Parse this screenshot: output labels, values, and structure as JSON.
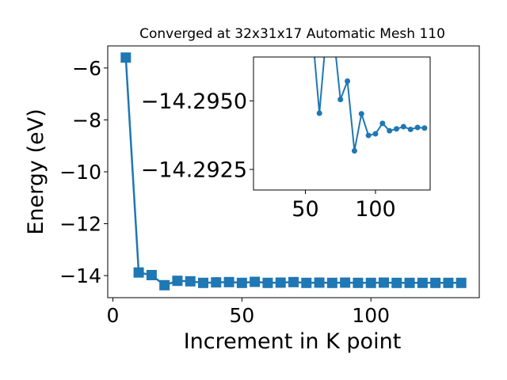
{
  "chart_data": [
    {
      "type": "line",
      "title": "Converged at 32x31x17 Automatic Mesh 110",
      "xlabel": "Increment in K point",
      "ylabel": "Energy (eV)",
      "xlim": [
        -2,
        142
      ],
      "ylim": [
        -14.85,
        -5.15
      ],
      "xticks": [
        0,
        50,
        100
      ],
      "yticks": [
        -14,
        -12,
        -10,
        -8,
        -6
      ],
      "grid": false,
      "color": "#1f77b4",
      "marker": "square",
      "series": [
        {
          "x": [
            5,
            10,
            15,
            20,
            25,
            30,
            35,
            40,
            45,
            50,
            55,
            60,
            65,
            70,
            75,
            80,
            85,
            90,
            95,
            100,
            105,
            110,
            115,
            120,
            125,
            130,
            135
          ],
          "y": [
            -5.6,
            -13.88,
            -13.98,
            -14.37,
            -14.2,
            -14.22,
            -14.28,
            -14.26,
            -14.25,
            -14.28,
            -14.24,
            -14.28,
            -14.27,
            -14.25,
            -14.28,
            -14.27,
            -14.28,
            -14.27,
            -14.28,
            -14.28,
            -14.27,
            -14.28,
            -14.28,
            -14.28,
            -14.28,
            -14.28,
            -14.28
          ]
        }
      ]
    },
    {
      "type": "line",
      "title": "",
      "xlim": [
        13,
        139
      ],
      "ylim": [
        -14.29175,
        -14.2966
      ],
      "xticks": [
        50,
        100
      ],
      "yticks": [
        -14.2925,
        -14.295
      ],
      "ytick_labels": [
        "−14.2925",
        "−14.2950"
      ],
      "grid": false,
      "color": "#1f77b4",
      "marker": "circle",
      "series": [
        {
          "x": [
            55,
            60,
            65,
            70,
            75,
            80,
            85,
            90,
            95,
            100,
            105,
            110,
            115,
            120,
            125,
            130,
            135
          ],
          "y": [
            -14.2975,
            -14.29455,
            -14.2975,
            -14.2975,
            -14.29505,
            -14.29572,
            -14.29318,
            -14.29453,
            -14.29374,
            -14.2938,
            -14.29418,
            -14.29391,
            -14.29398,
            -14.29406,
            -14.29396,
            -14.29403,
            -14.29401
          ]
        }
      ]
    }
  ]
}
